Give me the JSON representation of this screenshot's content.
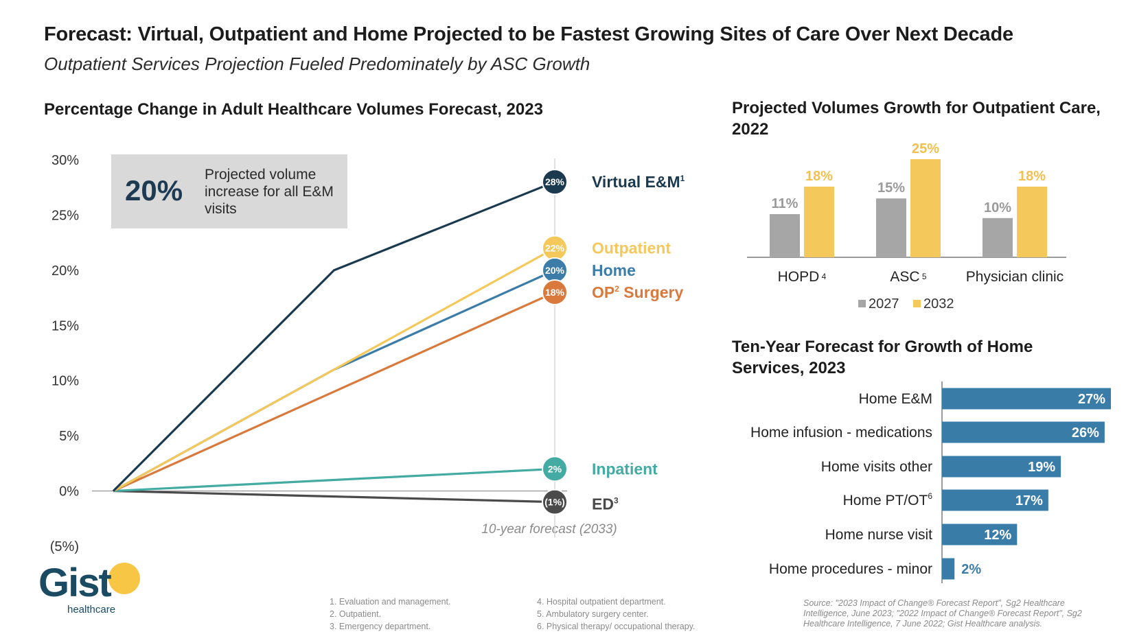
{
  "header": {
    "title": "Forecast: Virtual, Outpatient and Home Projected to be Fastest Growing Sites of Care Over Next Decade",
    "subtitle": "Outpatient Services Projection Fueled Predominately by ASC Growth"
  },
  "callout": {
    "value": "20%",
    "text": "Projected volume increase for all E&M visits"
  },
  "forecast_label": "10-year forecast (2033)",
  "chart_data": [
    {
      "type": "line",
      "title": "Percentage Change in Adult Healthcare Volumes Forecast, 2023",
      "ylim": [
        -5,
        30
      ],
      "yticks": [
        "30%",
        "25%",
        "20%",
        "15%",
        "10%",
        "5%",
        "0%",
        "(5%)"
      ],
      "ytick_values": [
        30,
        25,
        20,
        15,
        10,
        5,
        0,
        -5
      ],
      "x": [
        0,
        5,
        10
      ],
      "series": [
        {
          "name": "Virtual E&M",
          "sup": "1",
          "values": [
            0,
            20,
            28
          ],
          "end_label": "28%",
          "color": "#1b3a4f"
        },
        {
          "name": "Outpatient",
          "sup": "",
          "values": [
            0,
            11,
            22
          ],
          "end_label": "22%",
          "color": "#f4c85a"
        },
        {
          "name": "Home",
          "sup": "",
          "values": [
            0,
            11,
            20
          ],
          "end_label": "20%",
          "color": "#3b7ca8"
        },
        {
          "name": "OP Surgery",
          "name_parts": [
            "OP",
            "2",
            " Surgery"
          ],
          "values": [
            0,
            9,
            18
          ],
          "end_label": "18%",
          "color": "#d9793b"
        },
        {
          "name": "Inpatient",
          "sup": "",
          "values": [
            0,
            1,
            2
          ],
          "end_label": "2%",
          "color": "#43aba1"
        },
        {
          "name": "ED",
          "sup": "3",
          "values": [
            0,
            -0.5,
            -1
          ],
          "end_label": "(1%)",
          "color": "#4a4a4a"
        }
      ]
    },
    {
      "type": "bar",
      "title": "Projected Volumes Growth for Outpatient Care, 2022",
      "categories": [
        "HOPD",
        "ASC",
        "Physician clinic"
      ],
      "category_sups": [
        "4",
        "5",
        ""
      ],
      "series": [
        {
          "name": "2027",
          "values": [
            11,
            15,
            10
          ],
          "labels": [
            "11%",
            "15%",
            "10%"
          ],
          "color": "#a6a6a6"
        },
        {
          "name": "2032",
          "values": [
            18,
            25,
            18
          ],
          "labels": [
            "18%",
            "25%",
            "18%"
          ],
          "color": "#f4c85a"
        }
      ],
      "ylim": [
        0,
        25
      ]
    },
    {
      "type": "bar",
      "orientation": "horizontal",
      "title": "Ten-Year Forecast for Growth of Home Services, 2023",
      "categories": [
        "Home E&M",
        "Home infusion - medications",
        "Home visits other",
        "Home PT/OT",
        "Home nurse visit",
        "Home procedures - minor"
      ],
      "category_sups": [
        "",
        "",
        "",
        "6",
        "",
        ""
      ],
      "values": [
        27,
        26,
        19,
        17,
        12,
        2
      ],
      "labels": [
        "27%",
        "26%",
        "19%",
        "17%",
        "12%",
        "2%"
      ],
      "color": "#3a7ca8",
      "xlim": [
        0,
        27
      ]
    }
  ],
  "logo": {
    "word": "Gist",
    "sub": "healthcare"
  },
  "footnotes": {
    "col1": [
      "1. Evaluation and management.",
      "2. Outpatient.",
      "3. Emergency department."
    ],
    "col2": [
      "4. Hospital outpatient department.",
      "5. Ambulatory surgery center.",
      "6. Physical therapy/ occupational therapy."
    ]
  },
  "source": "Source: \"2023 Impact of Change® Forecast Report\", Sg2 Healthcare Intelligence, June 2023; \"2022 Impact of Change® Forecast Report\", Sg2 Healthcare Intelligence, 7 June 2022; Gist Healthcare analysis."
}
